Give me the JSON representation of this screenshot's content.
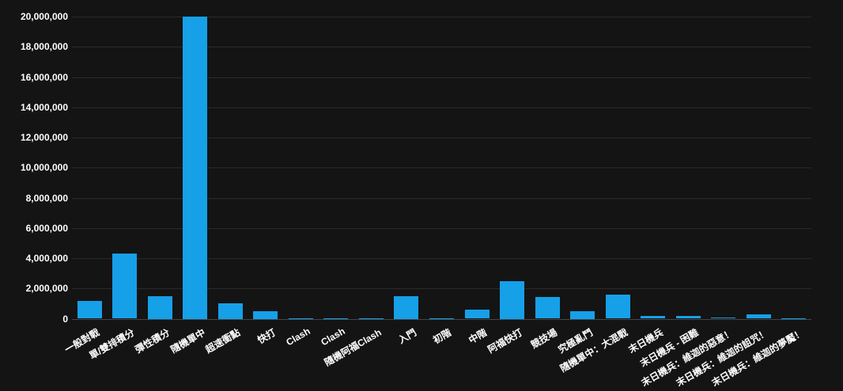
{
  "page": {
    "background_color": "#141414"
  },
  "chart_data": {
    "type": "bar",
    "title": "",
    "xlabel": "",
    "ylabel": "",
    "legend": false,
    "grid": true,
    "ylim": [
      0,
      20000000
    ],
    "ytick_step": 2000000,
    "ytick_format": "thousands-comma",
    "label_rotation_deg": -30,
    "bar_color": "#16a0e8",
    "grid_color": "#2a2a2a",
    "zero_line_color": "#454545",
    "tick_label_color": "#ffffff",
    "categories": [
      "一般對戰",
      "單/雙排積分",
      "彈性積分",
      "隨機單中",
      "超速衝點",
      "快打",
      "Clash",
      "Clash",
      "隨機阿福Clash",
      "入門",
      "初階",
      "中階",
      "阿福快打",
      "競技場",
      "究極亂鬥",
      "隨機單中：大混戰",
      "末日機兵",
      "末日機兵 - 困難",
      "末日機兵：維迦的惡意！",
      "末日機兵：維迦的詛咒！",
      "末日機兵：維迦的夢魘！"
    ],
    "values": [
      1200000,
      4300000,
      1500000,
      20000000,
      1000000,
      500000,
      50000,
      50000,
      50000,
      1500000,
      50000,
      600000,
      2500000,
      1450000,
      500000,
      1600000,
      200000,
      200000,
      100000,
      300000,
      50000
    ]
  }
}
